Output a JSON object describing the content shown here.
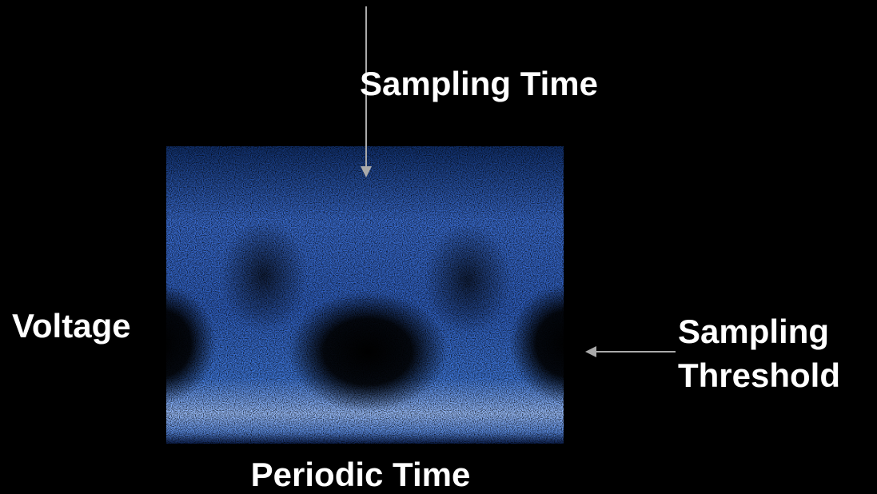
{
  "labels": {
    "sampling_time": "Sampling Time",
    "voltage": "Voltage",
    "sampling_threshold": [
      "Sampling",
      "Threshold"
    ],
    "periodic_time": "Periodic Time"
  }
}
